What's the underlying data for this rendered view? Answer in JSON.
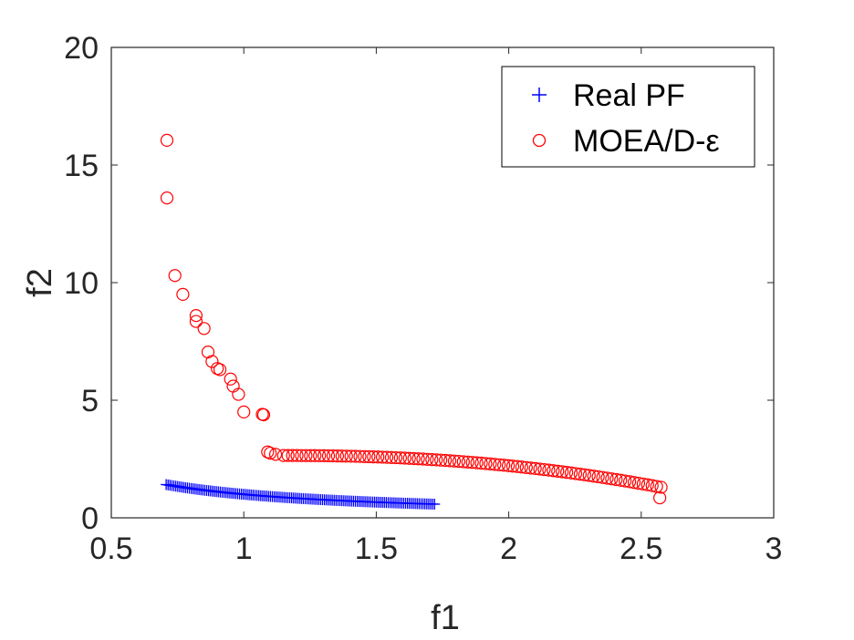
{
  "chart_data": {
    "type": "scatter",
    "title": "",
    "xlabel": "f1",
    "ylabel": "f2",
    "xlim": [
      0.5,
      3
    ],
    "ylim": [
      0,
      20
    ],
    "xticks": [
      0.5,
      1,
      1.5,
      2,
      2.5,
      3
    ],
    "yticks": [
      0,
      5,
      10,
      15,
      20
    ],
    "xtick_labels": [
      "0.5",
      "1",
      "1.5",
      "2",
      "2.5",
      "3"
    ],
    "ytick_labels": [
      "0",
      "5",
      "10",
      "15",
      "20"
    ],
    "grid": false,
    "legend_position": "top-right",
    "series": [
      {
        "name": "Real PF",
        "marker": "plus",
        "color": "#0000ff",
        "curve": {
          "x_start": 0.707,
          "x_end": 1.72,
          "count": 140,
          "formula": "1/x"
        }
      },
      {
        "name": "MOEA/D-ε",
        "marker": "circle",
        "color": "#ff0000",
        "points": [
          [
            0.71,
            16.05
          ],
          [
            0.71,
            13.6
          ],
          [
            0.74,
            10.3
          ],
          [
            0.77,
            9.5
          ],
          [
            0.82,
            8.6
          ],
          [
            0.82,
            8.35
          ],
          [
            0.85,
            8.05
          ],
          [
            0.865,
            7.05
          ],
          [
            0.88,
            6.65
          ],
          [
            0.9,
            6.35
          ],
          [
            0.91,
            6.3
          ],
          [
            0.95,
            5.9
          ],
          [
            0.96,
            5.6
          ],
          [
            0.98,
            5.25
          ],
          [
            1.0,
            4.5
          ],
          [
            1.07,
            4.4
          ],
          [
            1.075,
            4.38
          ],
          [
            1.09,
            2.8
          ],
          [
            1.1,
            2.75
          ],
          [
            1.12,
            2.7
          ],
          [
            2.57,
            0.85
          ]
        ],
        "dense_curve": {
          "x_start": 1.15,
          "x_end": 2.575,
          "y_start": 2.65,
          "y_end": 1.3,
          "count": 85
        }
      }
    ]
  }
}
